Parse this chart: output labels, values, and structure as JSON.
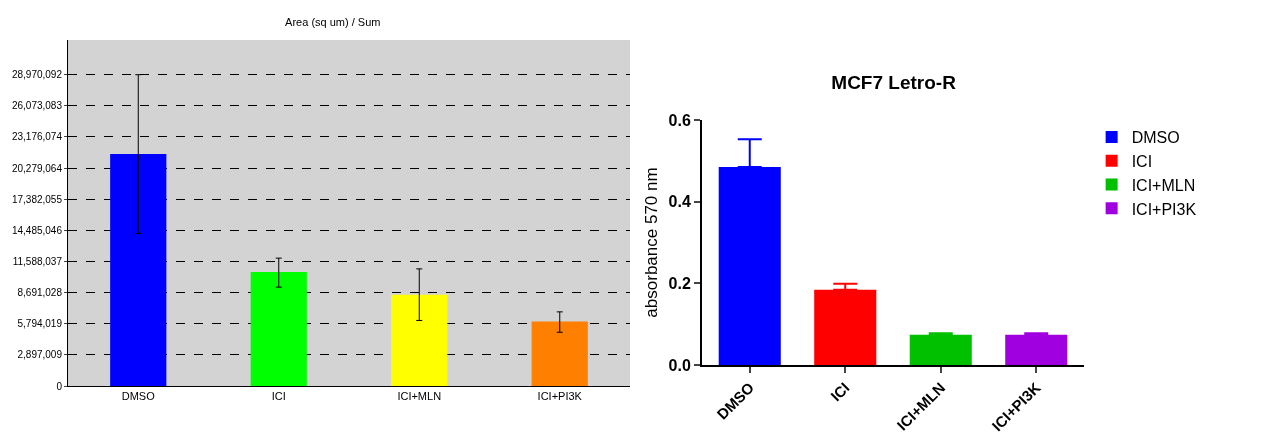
{
  "chart_data": [
    {
      "type": "bar",
      "title": "Area (sq um) / Sum",
      "categories": [
        "DMSO",
        "ICI",
        "ICI+MLN",
        "ICI+PI3K"
      ],
      "values": [
        21600000,
        10600000,
        8500000,
        6000000
      ],
      "colors": [
        "#0000ff",
        "#00ff00",
        "#ffff00",
        "#ff8000"
      ],
      "errors": [
        [
          14200000,
          28970000
        ],
        [
          9200000,
          11900000
        ],
        [
          6100000,
          10900000
        ],
        [
          5000000,
          6900000
        ]
      ],
      "ylim": [
        0,
        32200000
      ],
      "yticks": [
        0,
        {
          "value": 2897009,
          "label": "2,897,009"
        },
        {
          "value": 5794019,
          "label": "5,794,019"
        },
        {
          "value": 8691028,
          "label": "8,691,028"
        },
        {
          "value": 11588037,
          "label": "11,588,037"
        },
        {
          "value": 14485046,
          "label": "14,485,046"
        },
        {
          "value": 17382055,
          "label": "17,382,055"
        },
        {
          "value": 20279064,
          "label": "20,279,064"
        },
        {
          "value": 23176074,
          "label": "23,176,074"
        },
        {
          "value": 26073083,
          "label": "26,073,083"
        },
        {
          "value": 28970092,
          "label": "28,970,092"
        }
      ],
      "grid": "y",
      "legend": false
    },
    {
      "type": "bar",
      "title": "MCF7 Letro-R",
      "ylabel": "absorbance 570 nm",
      "categories": [
        "DMSO",
        "ICI",
        "ICI+MLN",
        "ICI+PI3K"
      ],
      "series": [
        {
          "name": "DMSO",
          "color": "#0000ff",
          "values": [
            0.485,
            null,
            null,
            null
          ],
          "errors": [
            [
              0.485,
              0.553
            ],
            null,
            null,
            null
          ]
        },
        {
          "name": "ICI",
          "color": "#ff0000",
          "values": [
            null,
            0.184,
            null,
            null
          ],
          "errors": [
            null,
            [
              0.184,
              0.199
            ],
            null,
            null
          ]
        },
        {
          "name": "ICI+MLN",
          "color": "#00c000",
          "values": [
            null,
            null,
            0.074,
            null
          ],
          "errors": [
            null,
            null,
            [
              0.074,
              0.078
            ],
            null
          ]
        },
        {
          "name": "ICI+PI3K",
          "color": "#a000e0",
          "values": [
            null,
            null,
            null,
            0.074
          ],
          "errors": [
            null,
            null,
            null,
            [
              0.074,
              0.078
            ]
          ]
        }
      ],
      "ylim": [
        0,
        0.6
      ],
      "yticks": [
        {
          "value": 0,
          "label": "0.0"
        },
        {
          "value": 0.2,
          "label": "0.2"
        },
        {
          "value": 0.4,
          "label": "0.4"
        },
        {
          "value": 0.6,
          "label": "0.6"
        }
      ],
      "grid": false,
      "legend": "right"
    }
  ]
}
